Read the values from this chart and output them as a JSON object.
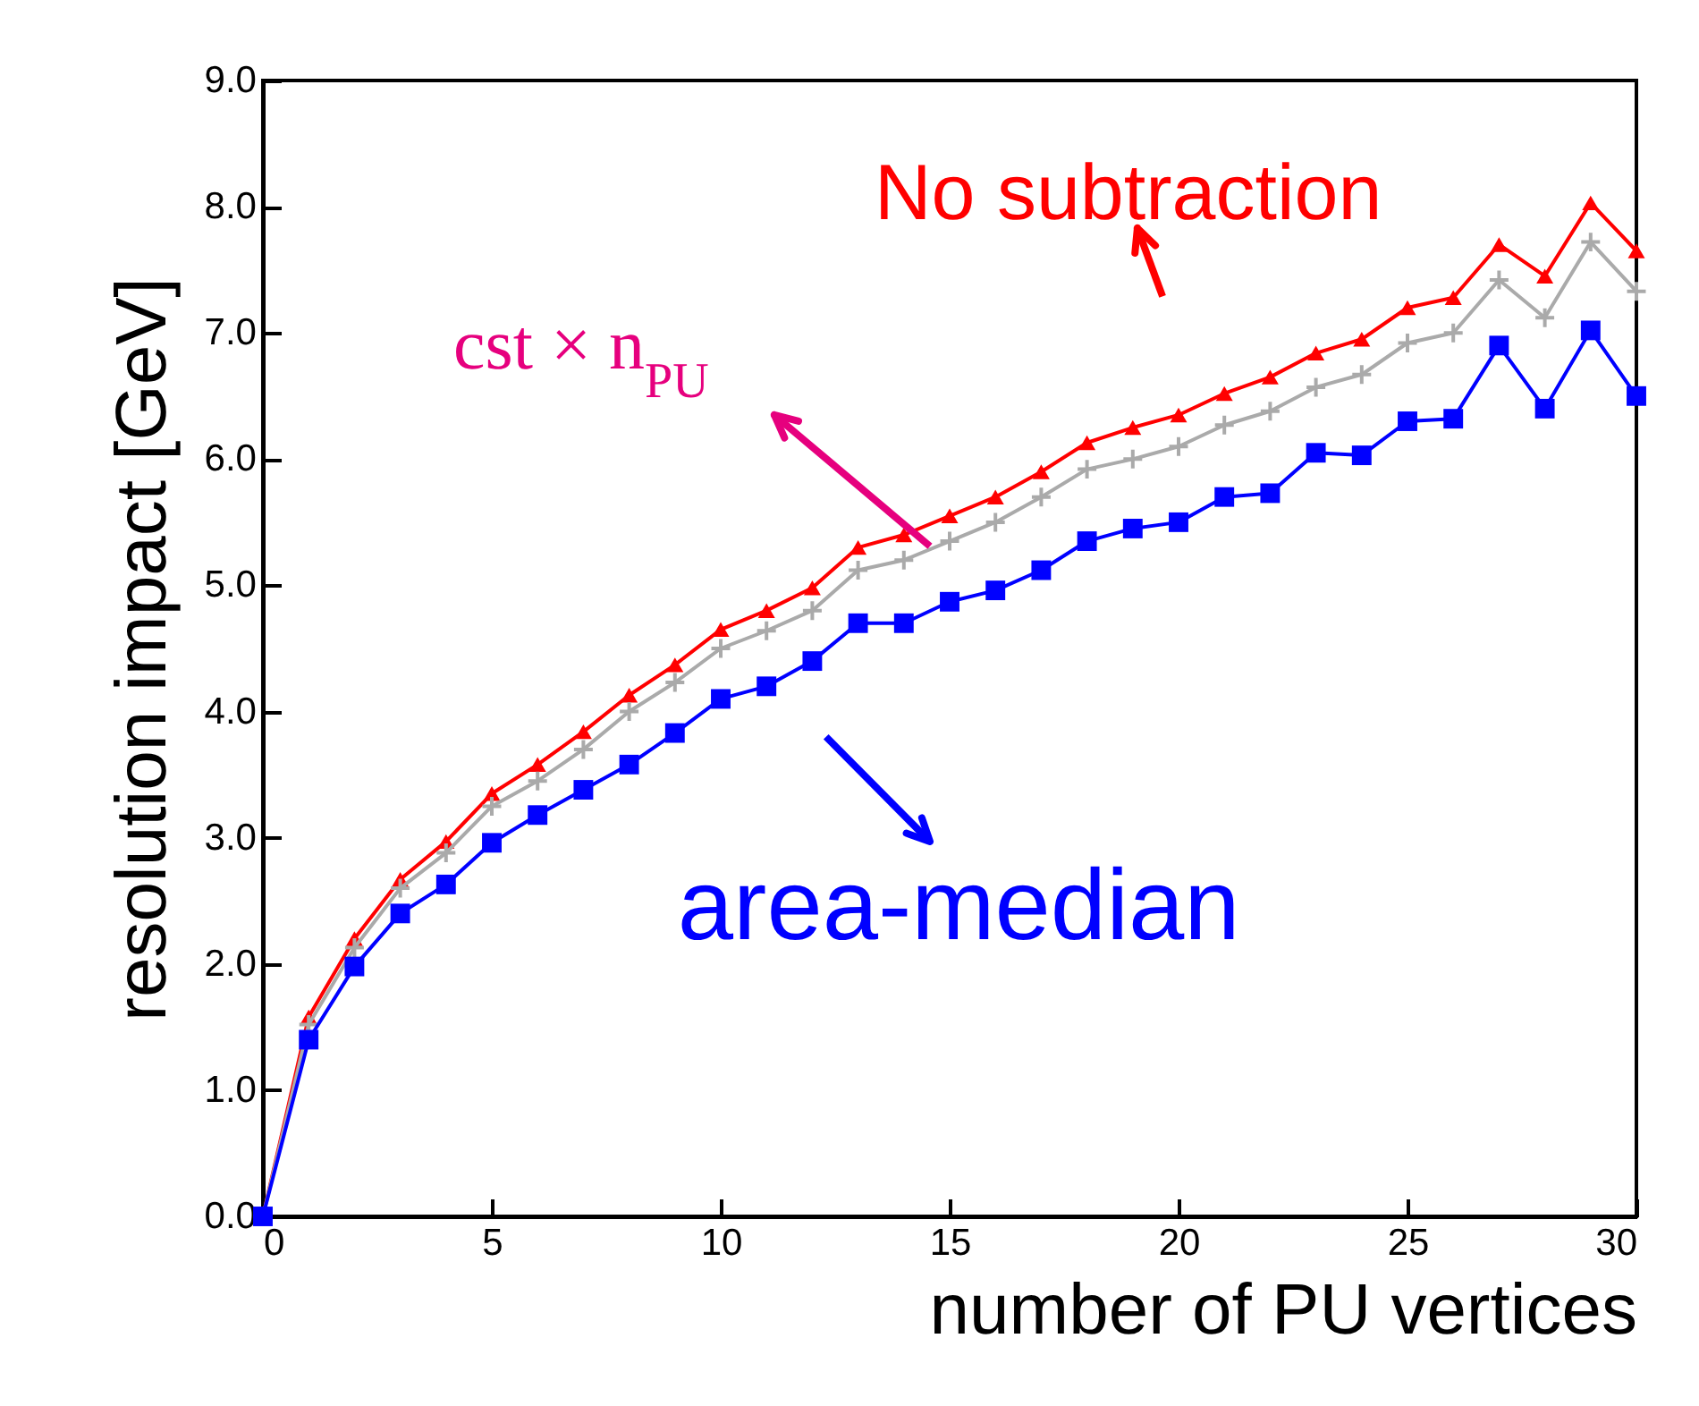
{
  "chart_data": {
    "type": "line",
    "xlabel": "number of PU vertices",
    "ylabel": "resolution impact [GeV]",
    "x": [
      0,
      1,
      2,
      3,
      4,
      5,
      6,
      7,
      8,
      9,
      10,
      11,
      12,
      13,
      14,
      15,
      16,
      17,
      18,
      19,
      20,
      21,
      22,
      23,
      24,
      25,
      26,
      27,
      28,
      29,
      30
    ],
    "series": [
      {
        "name": "No subtraction",
        "color": "#ff0000",
        "marker": "triangle",
        "values": [
          0,
          1.58,
          2.2,
          2.67,
          2.97,
          3.35,
          3.58,
          3.84,
          4.13,
          4.37,
          4.65,
          4.8,
          4.98,
          5.3,
          5.4,
          5.55,
          5.7,
          5.9,
          6.13,
          6.25,
          6.35,
          6.52,
          6.65,
          6.84,
          6.95,
          7.2,
          7.28,
          7.7,
          7.45,
          8.03,
          7.65
        ]
      },
      {
        "name": "cst × n$_{PU}$",
        "color": "#aaaaaa",
        "marker": "cross",
        "values": [
          0,
          1.52,
          2.13,
          2.6,
          2.88,
          3.25,
          3.45,
          3.7,
          4.0,
          4.23,
          4.5,
          4.64,
          4.8,
          5.12,
          5.2,
          5.35,
          5.5,
          5.7,
          5.92,
          6.0,
          6.1,
          6.27,
          6.38,
          6.57,
          6.67,
          6.92,
          7.0,
          7.42,
          7.12,
          7.72,
          7.33
        ]
      },
      {
        "name": "area-median",
        "color": "#0000ff",
        "marker": "square",
        "values": [
          0,
          1.4,
          1.98,
          2.4,
          2.63,
          2.96,
          3.18,
          3.38,
          3.58,
          3.83,
          4.1,
          4.2,
          4.4,
          4.7,
          4.7,
          4.87,
          4.96,
          5.12,
          5.35,
          5.45,
          5.5,
          5.7,
          5.73,
          6.05,
          6.03,
          6.3,
          6.32,
          6.9,
          6.4,
          7.02,
          6.5
        ]
      }
    ],
    "xlim": [
      0,
      30
    ],
    "xticks": [
      0,
      5,
      10,
      15,
      20,
      25,
      30
    ],
    "ylim": [
      0,
      9
    ],
    "yticks": [
      {
        "value": 0,
        "label": "0.0"
      },
      {
        "value": 1,
        "label": "1.0"
      },
      {
        "value": 2,
        "label": "2.0"
      },
      {
        "value": 3,
        "label": "3.0"
      },
      {
        "value": 4,
        "label": "4.0"
      },
      {
        "value": 5,
        "label": "5.0"
      },
      {
        "value": 6,
        "label": "6.0"
      },
      {
        "value": 7,
        "label": "7.0"
      },
      {
        "value": 8,
        "label": "8.0"
      },
      {
        "value": 9,
        "label": "9.0"
      }
    ],
    "grid": false,
    "line_style": "solid"
  }
}
